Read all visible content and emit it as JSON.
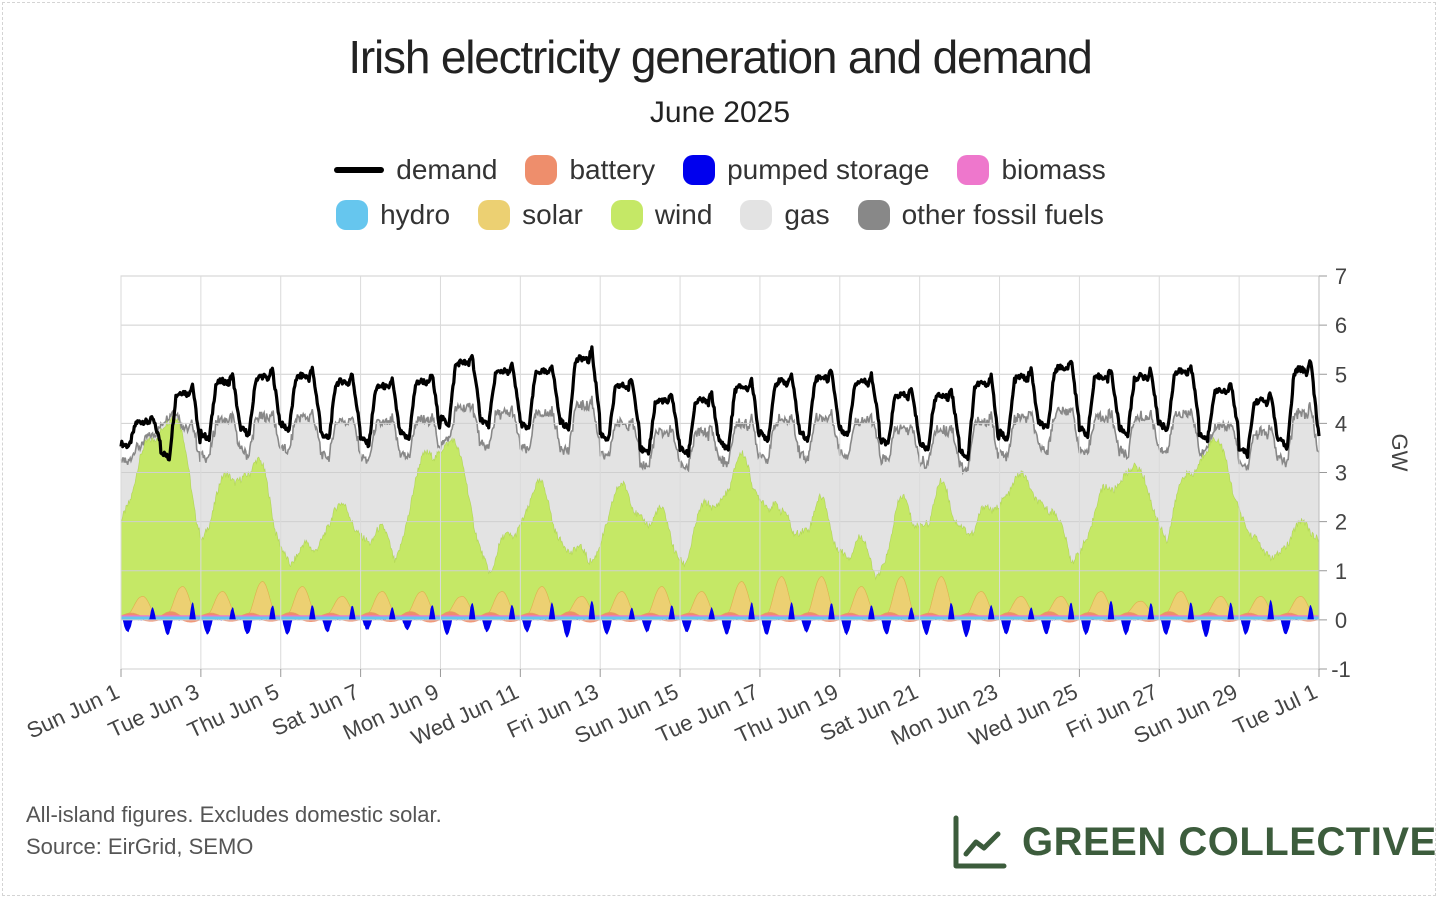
{
  "chart_data": {
    "type": "area",
    "title": "Irish electricity generation and demand",
    "subtitle": "June 2025",
    "ylabel": "GW",
    "ylim": [
      -1,
      7
    ],
    "y_ticks": [
      "7",
      "6",
      "5",
      "4",
      "3",
      "2",
      "1",
      "0",
      "-1"
    ],
    "x_range": [
      "2025-06-01",
      "2025-07-01"
    ],
    "x_ticks": [
      "Sun Jun 1",
      "Tue Jun 3",
      "Thu Jun 5",
      "Sat Jun 7",
      "Mon Jun 9",
      "Wed Jun 11",
      "Fri Jun 13",
      "Sun Jun 15",
      "Tue Jun 17",
      "Thu Jun 19",
      "Sat Jun 21",
      "Mon Jun 23",
      "Wed Jun 25",
      "Fri Jun 27",
      "Sun Jun 29",
      "Tue Jul 1"
    ],
    "grid": true,
    "legend_position": "top",
    "series": [
      {
        "name": "demand",
        "color": "#000000",
        "kind": "line",
        "daily_max": [
          4.1,
          4.8,
          5.0,
          5.1,
          5.1,
          5.0,
          4.9,
          5.0,
          5.4,
          5.2,
          5.2,
          5.5,
          4.9,
          4.6,
          4.6,
          4.9,
          5.0,
          5.1,
          5.0,
          4.7,
          4.7,
          5.0,
          5.1,
          5.3,
          5.1,
          5.1,
          5.2,
          4.8,
          4.6,
          5.3
        ],
        "daily_min": [
          3.5,
          3.2,
          3.6,
          3.7,
          3.8,
          3.6,
          3.5,
          3.6,
          3.9,
          3.9,
          3.8,
          3.8,
          3.6,
          3.3,
          3.3,
          3.4,
          3.6,
          3.6,
          3.7,
          3.5,
          3.4,
          3.2,
          3.6,
          3.8,
          3.7,
          3.7,
          3.8,
          3.6,
          3.3,
          3.4
        ]
      },
      {
        "name": "battery",
        "color": "#ee8e6c",
        "daily_peak": [
          0.1,
          0.15,
          0.1,
          0.1,
          0.12,
          0.1,
          0.12,
          0.15,
          0.15,
          0.12,
          0.1,
          0.15,
          0.12,
          0.1,
          0.1,
          0.12,
          0.12,
          0.12,
          0.1,
          0.12,
          0.1,
          0.1,
          0.12,
          0.15,
          0.12,
          0.12,
          0.15,
          0.12,
          0.1,
          0.1
        ]
      },
      {
        "name": "pumped storage",
        "color": "#0000ee",
        "daily_peak": [
          0.25,
          0.35,
          0.25,
          0.3,
          0.3,
          0.3,
          0.25,
          0.3,
          0.35,
          0.3,
          0.35,
          0.4,
          0.25,
          0.3,
          0.25,
          0.35,
          0.35,
          0.35,
          0.3,
          0.25,
          0.35,
          0.3,
          0.25,
          0.35,
          0.4,
          0.35,
          0.35,
          0.35,
          0.4,
          0.3
        ],
        "daily_trough": [
          -0.25,
          -0.3,
          -0.3,
          -0.3,
          -0.3,
          -0.25,
          -0.2,
          -0.2,
          -0.3,
          -0.25,
          -0.25,
          -0.35,
          -0.3,
          -0.25,
          -0.25,
          -0.3,
          -0.3,
          -0.25,
          -0.3,
          -0.3,
          -0.3,
          -0.35,
          -0.3,
          -0.3,
          -0.3,
          -0.3,
          -0.3,
          -0.35,
          -0.3,
          -0.3
        ]
      },
      {
        "name": "biomass",
        "color": "#ee77cc",
        "level": 0.05
      },
      {
        "name": "hydro",
        "color": "#66c6ee",
        "level": 0.05
      },
      {
        "name": "solar",
        "color": "#ecd072",
        "daily_peak": [
          0.4,
          0.6,
          0.5,
          0.7,
          0.6,
          0.4,
          0.5,
          0.5,
          0.4,
          0.5,
          0.6,
          0.4,
          0.5,
          0.6,
          0.5,
          0.7,
          0.8,
          0.8,
          0.6,
          0.8,
          0.8,
          0.5,
          0.4,
          0.4,
          0.5,
          0.3,
          0.5,
          0.4,
          0.4,
          0.4
        ]
      },
      {
        "name": "wind",
        "color": "#c5e866",
        "daily_peak": [
          2.7,
          4.3,
          3.0,
          2.8,
          1.5,
          2.0,
          1.6,
          3.0,
          3.5,
          1.5,
          2.3,
          1.5,
          2.5,
          1.8,
          2.3,
          2.5,
          3.2,
          1.8,
          1.2,
          2.0,
          1.8,
          3.0,
          2.5,
          2.5,
          2.0,
          3.0,
          3.2,
          3.4,
          2.2,
          1.6
        ]
      },
      {
        "name": "gas",
        "color": "#e3e3e3",
        "level_note": "fills between renewables and demand"
      },
      {
        "name": "other fossil fuels",
        "color": "#888888",
        "level": 0.02
      }
    ],
    "note": "All-island figures. Excludes domestic solar."
  },
  "footer": {
    "note": "All-island figures. Excludes domestic solar.",
    "source": "Source: EirGrid, SEMO",
    "brand": "GREEN COLLECTIVE"
  }
}
